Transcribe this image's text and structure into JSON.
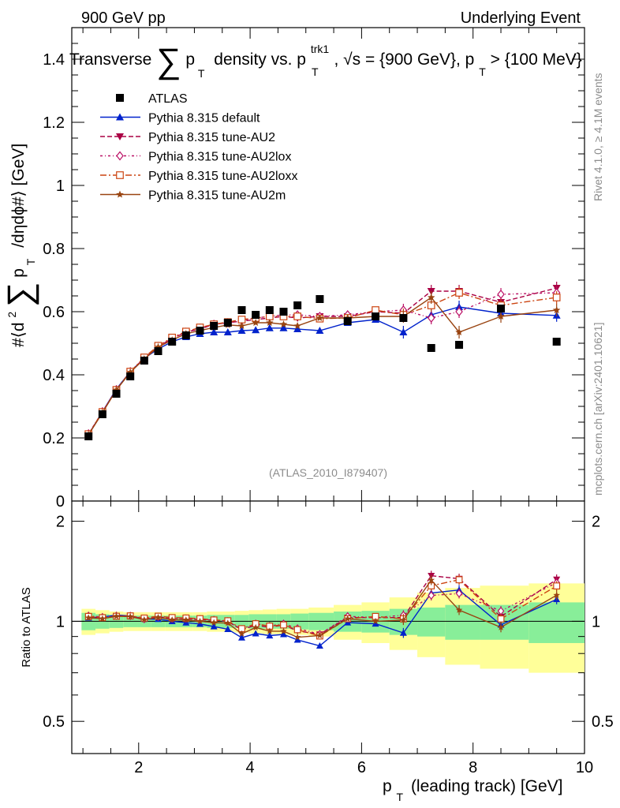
{
  "header": {
    "left": "900 GeV pp",
    "right": "Underlying Event"
  },
  "side_text": {
    "rivet": "Rivet 4.1.0, ≥ 4.1M events",
    "mcplots": "mcplots.cern.ch [arXiv:2401.10621]"
  },
  "chart_data": {
    "type": "line",
    "title": "Transverse ∑ pT density vs. pT trk1, √s = {900 GeV}, pT > {100 MeV}",
    "title_parts": {
      "a": "Transverse",
      "sigma": "∑",
      "b": "p",
      "c": "T",
      "d": "density vs. p",
      "e": "trk1",
      "f": "T",
      "g": ", √s = {900 GeV}, p",
      "h": "T",
      "i": " > {100 MeV}"
    },
    "analysis_label": "(ATLAS_2010_I879407)",
    "ylabel": "#⟨d² ∑ pT /dηdϕ#⟩ [GeV]",
    "ylabel_parts": {
      "a": "#⟨d",
      "b": "2",
      "sigma": "∑",
      "c": "p",
      "d": "T",
      "e": "/dηdϕ#⟩ [GeV]"
    },
    "ratio_ylabel": "Ratio to ATLAS",
    "xlabel": "pT (leading track) [GeV]",
    "xlabel_parts": {
      "a": "p",
      "b": "T",
      "c": "(leading track) [GeV]"
    },
    "xlim": [
      0.8,
      10.0
    ],
    "ylim": [
      0,
      1.5
    ],
    "ratio_ylim": [
      0.4,
      2.3
    ],
    "x_ticks": [
      "2",
      "4",
      "6",
      "8",
      "10"
    ],
    "y_ticks": [
      "0",
      "0.2",
      "0.4",
      "0.6",
      "0.8",
      "1",
      "1.2",
      "1.4"
    ],
    "ratio_ticks": [
      "0.5",
      "1",
      "2"
    ],
    "x": [
      1.1,
      1.35,
      1.6,
      1.85,
      2.1,
      2.35,
      2.6,
      2.85,
      3.1,
      3.35,
      3.6,
      3.85,
      4.1,
      4.35,
      4.6,
      4.85,
      5.25,
      5.75,
      6.25,
      6.75,
      7.25,
      7.75,
      8.5,
      9.5
    ],
    "data": {
      "name": "ATLAS",
      "values": [
        0.205,
        0.275,
        0.34,
        0.395,
        0.445,
        0.475,
        0.505,
        0.525,
        0.54,
        0.555,
        0.565,
        0.605,
        0.59,
        0.605,
        0.6,
        0.62,
        0.64,
        0.57,
        0.585,
        0.58,
        0.485,
        0.495,
        0.61,
        0.505
      ],
      "band_inner": [
        0.06,
        0.05,
        0.045,
        0.04,
        0.04,
        0.04,
        0.04,
        0.04,
        0.04,
        0.045,
        0.045,
        0.045,
        0.05,
        0.05,
        0.05,
        0.055,
        0.06,
        0.07,
        0.075,
        0.09,
        0.1,
        0.12,
        0.12,
        0.14
      ],
      "band_outer": [
        0.09,
        0.08,
        0.07,
        0.065,
        0.065,
        0.065,
        0.065,
        0.065,
        0.065,
        0.07,
        0.07,
        0.075,
        0.08,
        0.085,
        0.09,
        0.09,
        0.1,
        0.12,
        0.14,
        0.18,
        0.22,
        0.26,
        0.28,
        0.3
      ]
    },
    "series": [
      {
        "name": "Pythia 8.315 default",
        "color": "#0022cc",
        "dash": "",
        "marker": "triangle-up",
        "values": [
          0.21,
          0.283,
          0.355,
          0.41,
          0.452,
          0.482,
          0.505,
          0.52,
          0.53,
          0.535,
          0.535,
          0.54,
          0.542,
          0.548,
          0.548,
          0.545,
          0.54,
          0.565,
          0.575,
          0.535,
          0.59,
          0.615,
          0.595,
          0.588
        ]
      },
      {
        "name": "Pythia 8.315 tune-AU2",
        "color": "#aa0044",
        "dash": "6,3",
        "marker": "triangle-down",
        "values": [
          0.212,
          0.282,
          0.352,
          0.41,
          0.452,
          0.49,
          0.515,
          0.535,
          0.545,
          0.56,
          0.565,
          0.57,
          0.575,
          0.58,
          0.585,
          0.58,
          0.585,
          0.585,
          0.6,
          0.595,
          0.665,
          0.665,
          0.63,
          0.675
        ]
      },
      {
        "name": "Pythia 8.315 tune-AU2lox",
        "color": "#bb1166",
        "dash": "3,3,1,3",
        "marker": "diamond",
        "values": [
          0.213,
          0.283,
          0.353,
          0.41,
          0.452,
          0.49,
          0.515,
          0.535,
          0.548,
          0.56,
          0.565,
          0.572,
          0.58,
          0.585,
          0.59,
          0.59,
          0.585,
          0.59,
          0.6,
          0.605,
          0.58,
          0.6,
          0.655,
          0.66
        ]
      },
      {
        "name": "Pythia 8.315 tune-AU2loxx",
        "color": "#cc4411",
        "dash": "8,3,2,3",
        "marker": "square",
        "values": [
          0.212,
          0.282,
          0.352,
          0.41,
          0.455,
          0.492,
          0.518,
          0.537,
          0.55,
          0.56,
          0.567,
          0.575,
          0.58,
          0.585,
          0.585,
          0.585,
          0.578,
          0.58,
          0.605,
          0.59,
          0.62,
          0.66,
          0.62,
          0.645
        ]
      },
      {
        "name": "Pythia 8.315 tune-AU2m",
        "color": "#994411",
        "dash": "",
        "marker": "star",
        "values": [
          0.21,
          0.28,
          0.352,
          0.408,
          0.45,
          0.488,
          0.51,
          0.53,
          0.54,
          0.55,
          0.558,
          0.555,
          0.565,
          0.565,
          0.56,
          0.555,
          0.58,
          0.58,
          0.585,
          0.585,
          0.645,
          0.535,
          0.585,
          0.605
        ]
      }
    ]
  }
}
